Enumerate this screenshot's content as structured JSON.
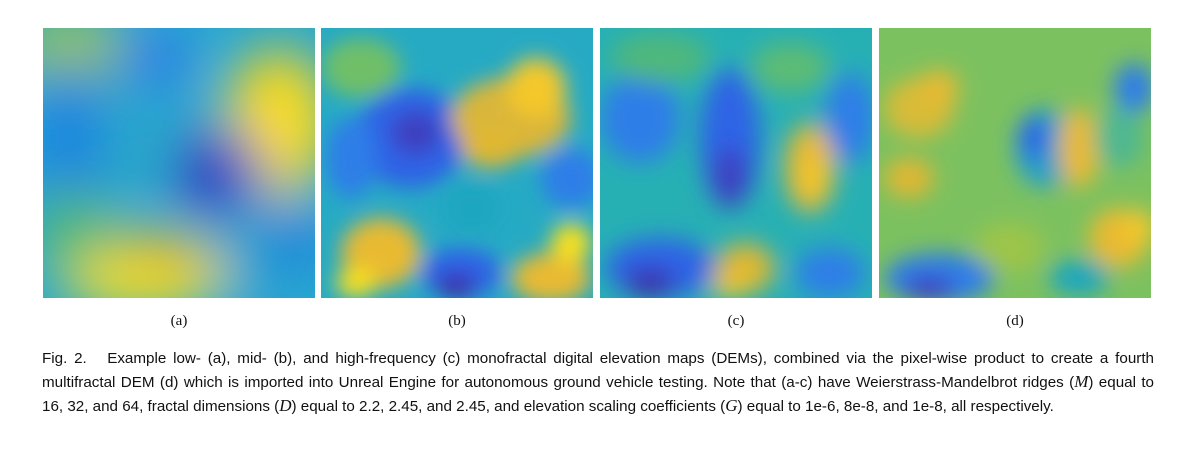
{
  "figure": {
    "panels": [
      {
        "label": "(a)"
      },
      {
        "label": "(b)"
      },
      {
        "label": "(c)"
      },
      {
        "label": "(d)"
      }
    ],
    "caption": {
      "fig_label": "Fig. 2.",
      "text_1": "Example low- (a), mid- (b), and high-frequency (c) monofractal digital elevation maps (DEMs), combined via the pixel-wise product to create a fourth multifractal DEM (d) which is imported into Unreal Engine for autonomous ground vehicle testing. Note that (a-c) have Weierstrass-Mandelbrot ridges (",
      "sym_m": "M",
      "text_2": ") equal to 16, 32, and 64, fractal dimensions (",
      "sym_d": "D",
      "text_3": ") equal to 2.2, 2.45, and 2.45, and elevation scaling coefficients (",
      "sym_g": "G",
      "text_4": ") equal to 1e-6, 8e-8, and 1e-8, all respectively."
    },
    "colormap": [
      "#3e26a8",
      "#2f64e6",
      "#1397e0",
      "#1aa6c0",
      "#3eb890",
      "#9cc548",
      "#e8ba30",
      "#fae01f",
      "#f9fb0e"
    ]
  }
}
